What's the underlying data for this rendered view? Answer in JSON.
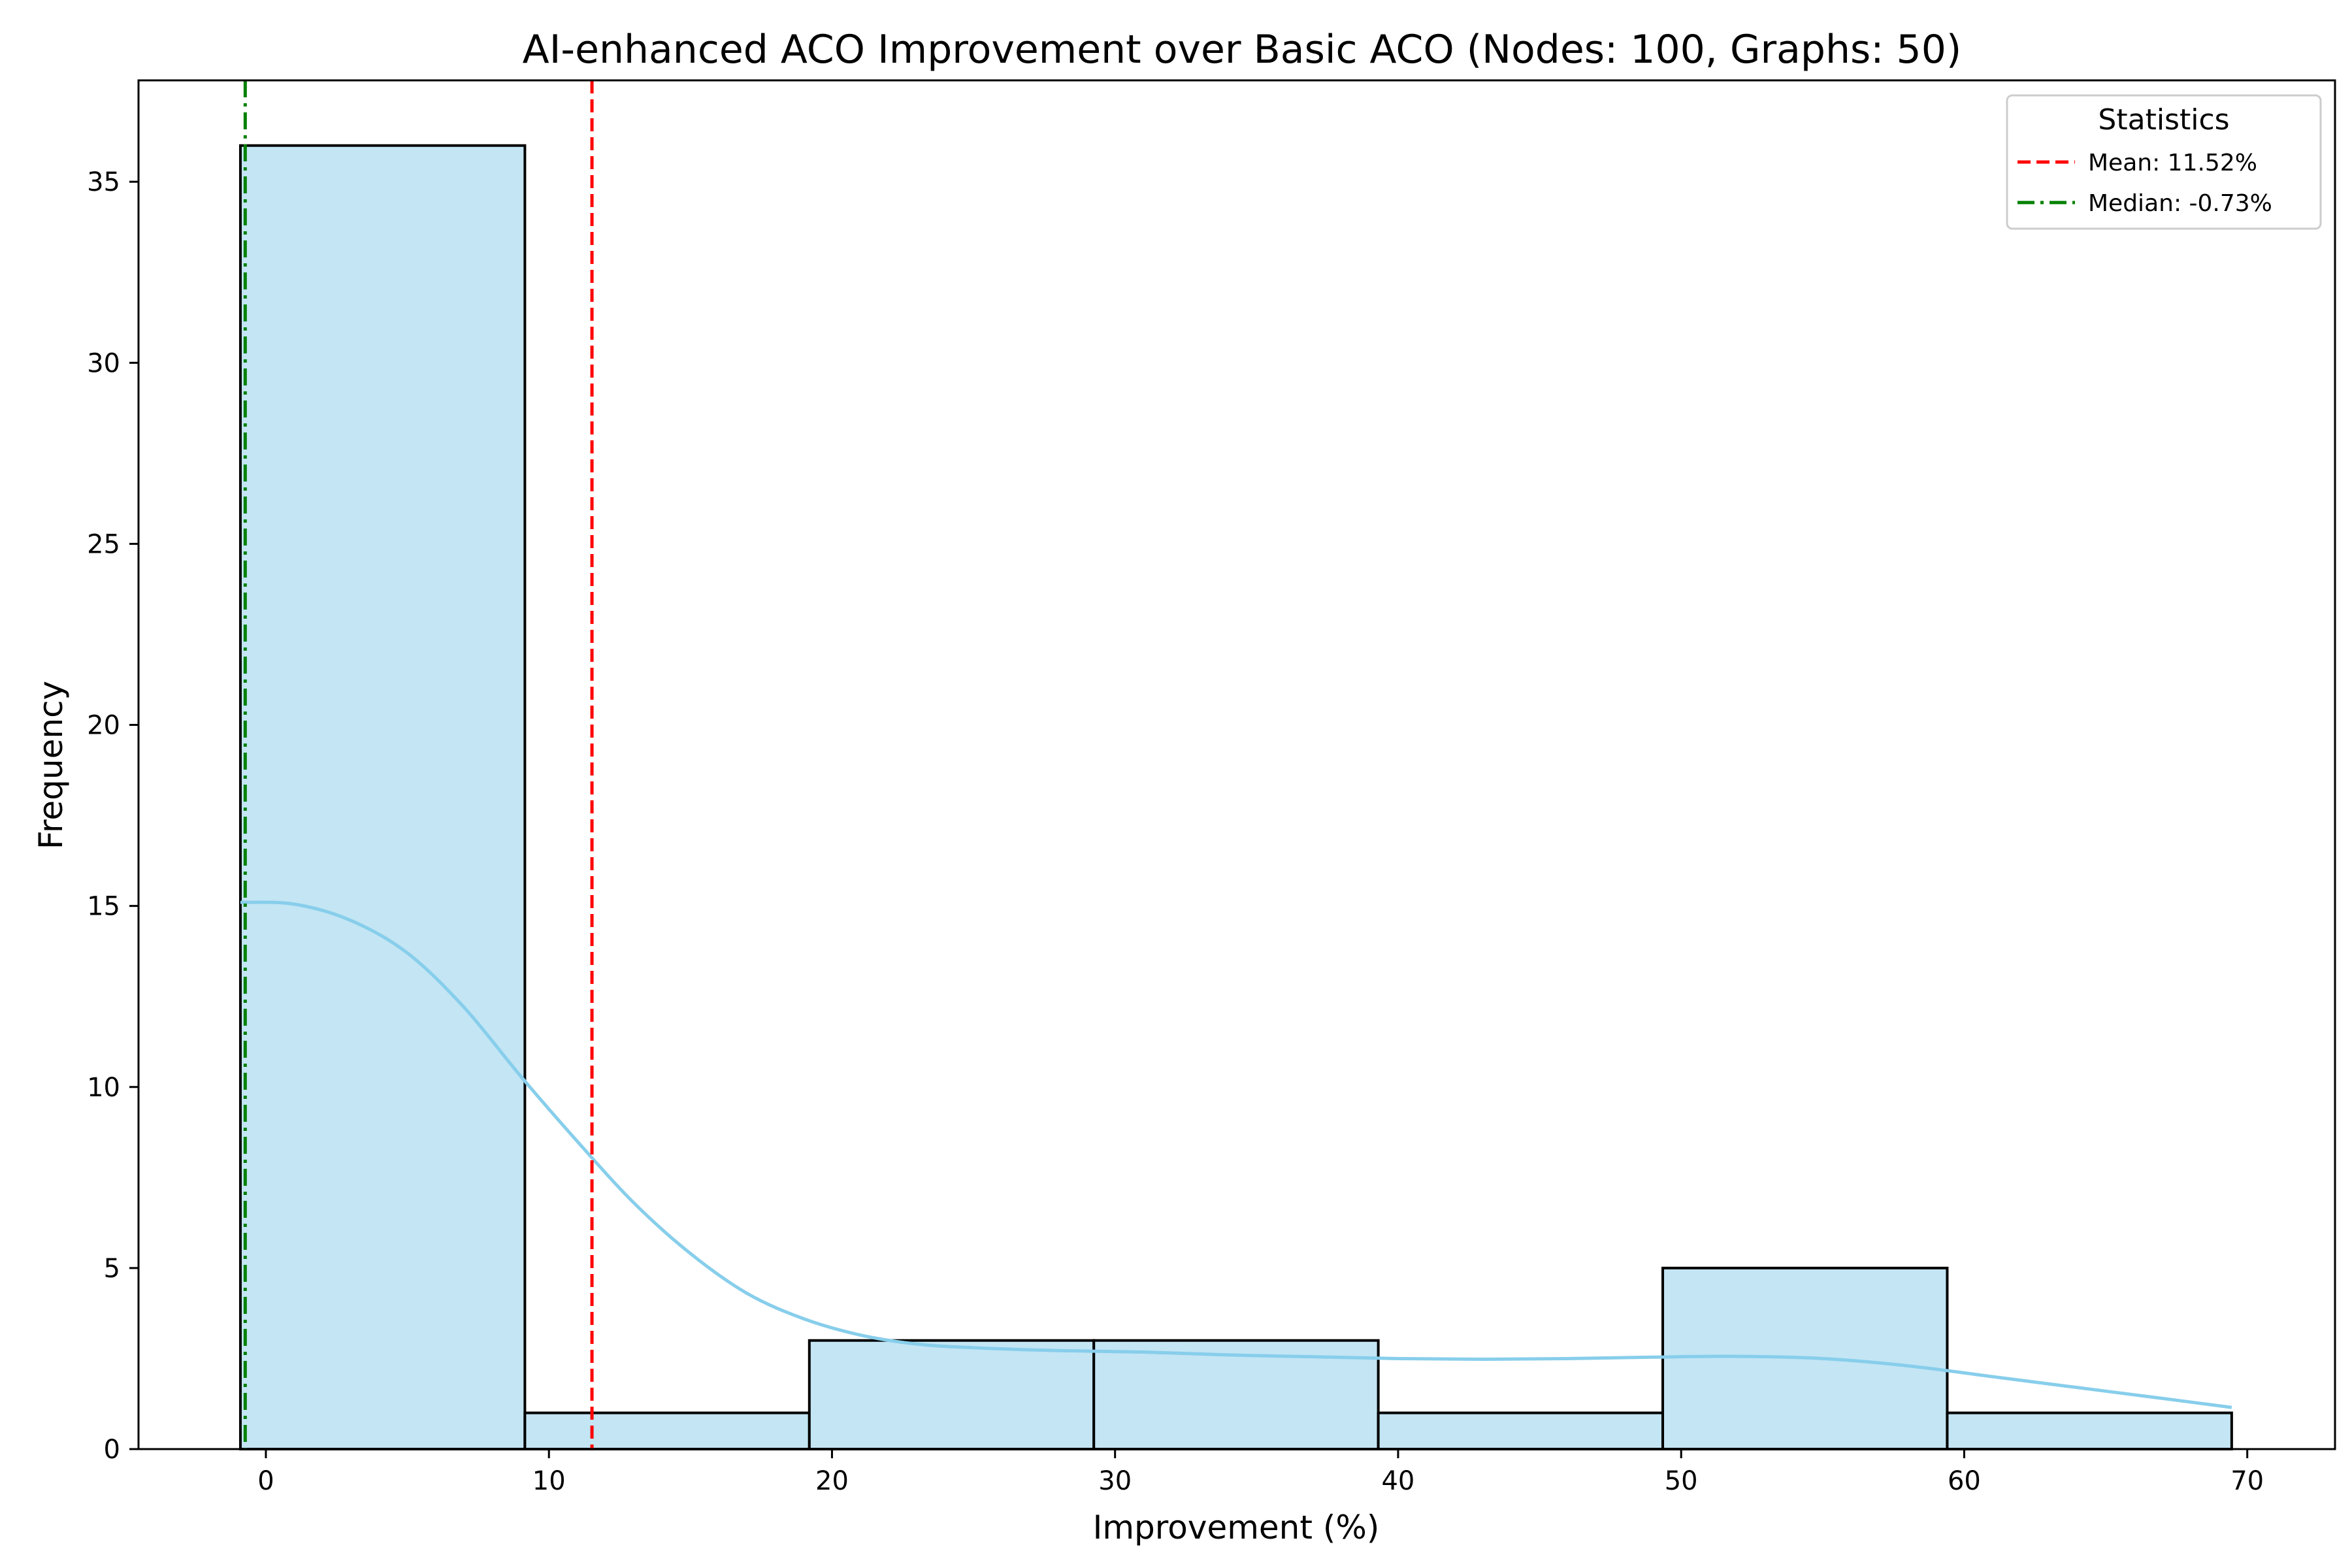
{
  "chart_data": {
    "type": "bar",
    "title": "AI-enhanced ACO Improvement over Basic ACO (Nodes: 100, Graphs: 50)",
    "xlabel": "Improvement (%)",
    "ylabel": "Frequency",
    "xlim": [
      -4.5,
      73.1
    ],
    "ylim": [
      0,
      37.8
    ],
    "xticks": [
      0,
      10,
      20,
      30,
      40,
      50,
      60,
      70
    ],
    "yticks": [
      0,
      5,
      10,
      15,
      20,
      25,
      30,
      35
    ],
    "grid": false,
    "bins": [
      {
        "start": -0.9,
        "end": 9.15,
        "count": 36
      },
      {
        "start": 9.15,
        "end": 19.2,
        "count": 1
      },
      {
        "start": 19.2,
        "end": 29.25,
        "count": 3
      },
      {
        "start": 29.25,
        "end": 39.3,
        "count": 3
      },
      {
        "start": 39.3,
        "end": 49.35,
        "count": 1
      },
      {
        "start": 49.35,
        "end": 59.4,
        "count": 5
      },
      {
        "start": 59.4,
        "end": 69.45,
        "count": 1
      }
    ],
    "kde": {
      "x": [
        -0.9,
        1,
        3,
        5,
        7,
        9,
        11,
        13,
        15,
        17,
        19,
        21,
        23,
        25,
        28,
        31,
        34,
        37,
        40,
        43,
        46,
        49,
        52,
        55,
        58,
        61,
        64,
        67,
        69.45
      ],
      "y": [
        15.1,
        15.05,
        14.6,
        13.7,
        12.2,
        10.3,
        8.5,
        6.8,
        5.4,
        4.3,
        3.6,
        3.15,
        2.9,
        2.8,
        2.72,
        2.68,
        2.6,
        2.55,
        2.5,
        2.48,
        2.5,
        2.54,
        2.56,
        2.5,
        2.3,
        2.0,
        1.7,
        1.4,
        1.15
      ]
    },
    "reference_lines": [
      {
        "name": "Mean: 11.52%",
        "x": 11.52,
        "color": "#ff0000",
        "style": "dashed"
      },
      {
        "name": "Median: -0.73%",
        "x": -0.73,
        "color": "#008000",
        "style": "dashdot"
      }
    ],
    "legend": {
      "title": "Statistics",
      "placement": "top-right"
    },
    "colors": {
      "bar_fill": "#c3e5f4",
      "bar_edge": "#000000",
      "kde_line": "#87ceeb"
    }
  }
}
